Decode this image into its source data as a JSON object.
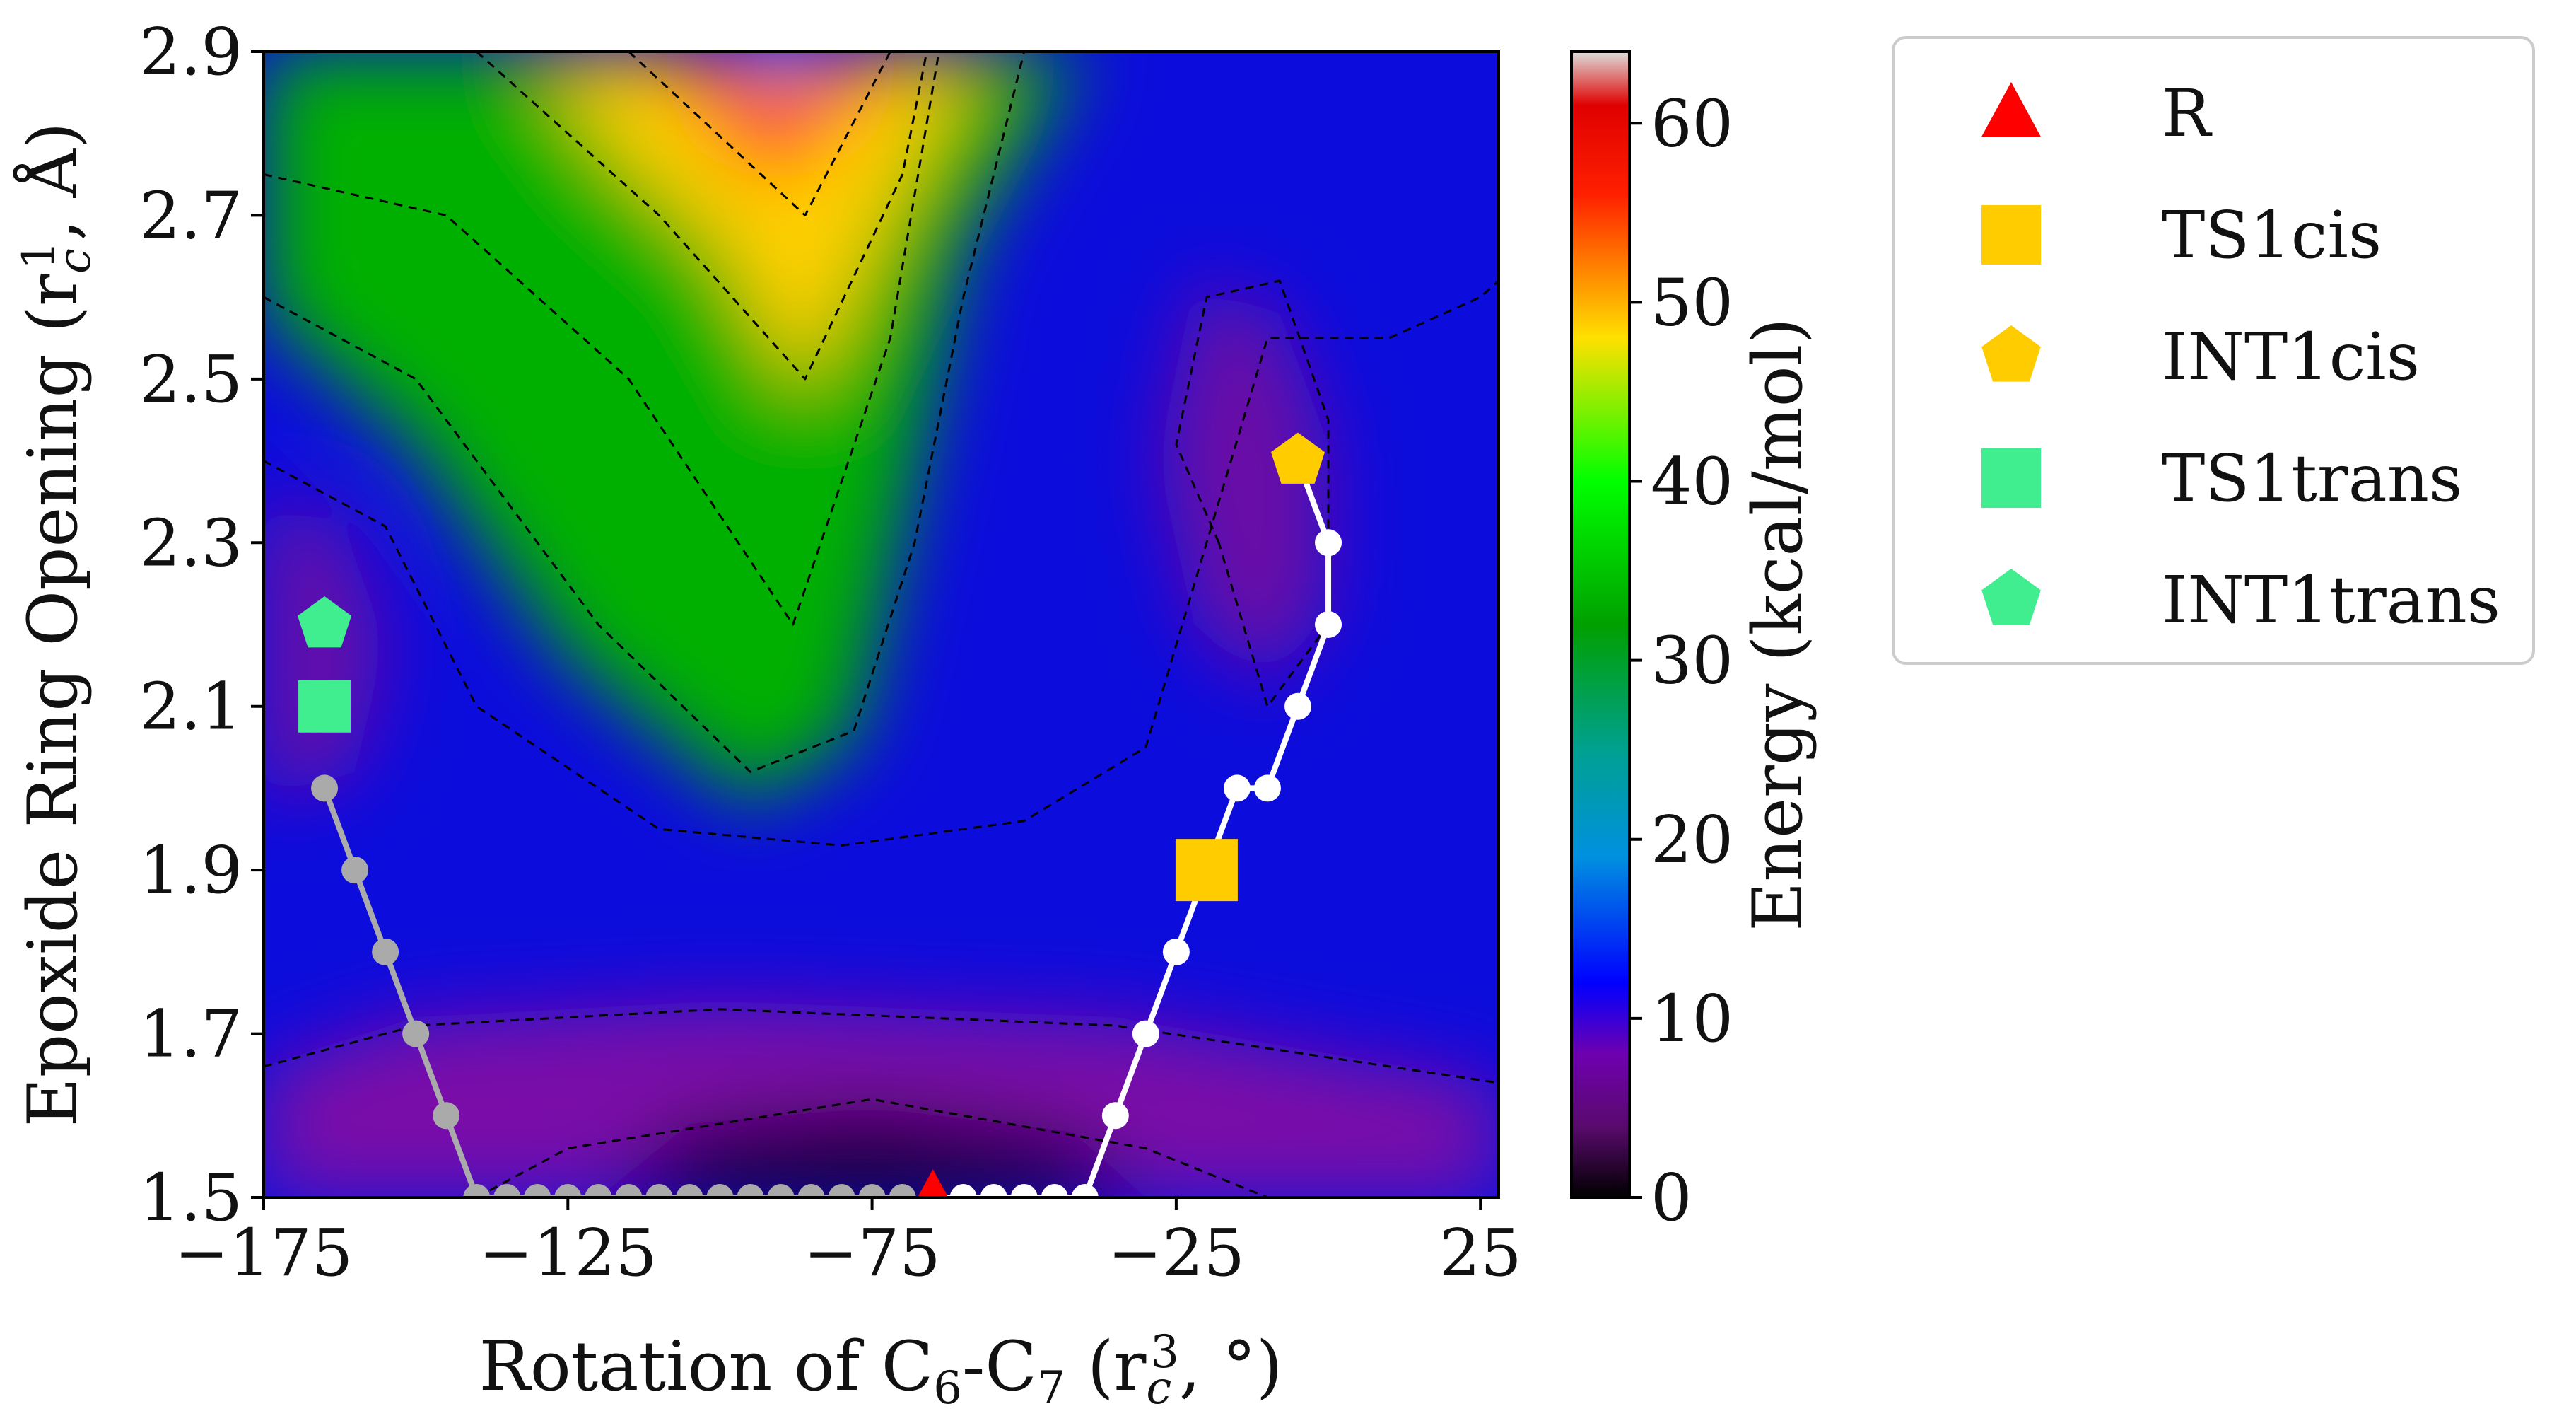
{
  "chart_data": {
    "type": "heatmap",
    "subtype": "contour-energy-surface",
    "x_axis": {
      "label_parts": [
        "Rotation of C",
        "6",
        "-C",
        "7",
        " (r",
        "c",
        "3",
        ", °)"
      ],
      "range": [
        -175,
        28
      ],
      "ticks": [
        -175,
        -125,
        -75,
        -25,
        25
      ],
      "tick_labels": [
        "−175",
        "−125",
        "−75",
        "−25",
        "25"
      ]
    },
    "y_axis": {
      "label_parts": [
        "Epoxide Ring Opening (r",
        "c",
        "1",
        ", Å)"
      ],
      "range": [
        1.5,
        2.9
      ],
      "ticks": [
        1.5,
        1.7,
        1.9,
        2.1,
        2.3,
        2.5,
        2.7,
        2.9
      ],
      "tick_labels": [
        "1.5",
        "1.7",
        "1.9",
        "2.1",
        "2.3",
        "2.5",
        "2.7",
        "2.9"
      ]
    },
    "colorbar": {
      "label": "Energy (kcal/mol)",
      "range": [
        0,
        64
      ],
      "ticks": [
        0,
        10,
        20,
        30,
        40,
        50,
        60
      ],
      "tick_labels": [
        "0",
        "10",
        "20",
        "30",
        "40",
        "50",
        "60"
      ],
      "stops": [
        {
          "value": 0,
          "color": "#000000"
        },
        {
          "value": 4,
          "color": "#5a0a6e"
        },
        {
          "value": 8,
          "color": "#6e00b0"
        },
        {
          "value": 12,
          "color": "#0000ff"
        },
        {
          "value": 19,
          "color": "#0090e0"
        },
        {
          "value": 25,
          "color": "#00a090"
        },
        {
          "value": 32,
          "color": "#00a000"
        },
        {
          "value": 40,
          "color": "#00ff00"
        },
        {
          "value": 48,
          "color": "#ffe000"
        },
        {
          "value": 56,
          "color": "#ff2000"
        },
        {
          "value": 61,
          "color": "#e00000"
        },
        {
          "value": 64,
          "color": "#dddddd"
        }
      ]
    },
    "heatmap_regions": [
      {
        "name": "lower-basin",
        "points": [
          [
            -175,
            1.5
          ],
          [
            28,
            1.5
          ],
          [
            28,
            1.64
          ],
          [
            -35,
            1.72
          ],
          [
            -100,
            1.74
          ],
          [
            -150,
            1.72
          ],
          [
            -175,
            1.66
          ]
        ],
        "color": "#7a10a8"
      },
      {
        "name": "global-minimum",
        "points": [
          [
            -120,
            1.5
          ],
          [
            -30,
            1.5
          ],
          [
            -42,
            1.58
          ],
          [
            -75,
            1.61
          ],
          [
            -105,
            1.59
          ]
        ],
        "color": "#120414"
      },
      {
        "name": "trans-well",
        "points": [
          [
            -175,
            2.36
          ],
          [
            -162,
            2.32
          ],
          [
            -155,
            2.18
          ],
          [
            -160,
            2.02
          ],
          [
            -175,
            1.98
          ]
        ],
        "color": "#6a0aa6"
      },
      {
        "name": "cis-well",
        "points": [
          [
            -22,
            2.62
          ],
          [
            -8,
            2.58
          ],
          [
            0,
            2.42
          ],
          [
            0,
            2.22
          ],
          [
            -10,
            2.12
          ],
          [
            -22,
            2.2
          ],
          [
            -28,
            2.4
          ]
        ],
        "color": "#6a0aa6"
      },
      {
        "name": "ridge-green",
        "points": [
          [
            -175,
            2.9
          ],
          [
            -40,
            2.9
          ],
          [
            -60,
            2.66
          ],
          [
            -70,
            2.32
          ],
          [
            -78,
            2.06
          ],
          [
            -95,
            1.98
          ],
          [
            -125,
            2.16
          ],
          [
            -150,
            2.42
          ],
          [
            -175,
            2.58
          ]
        ],
        "color": "#00b000"
      },
      {
        "name": "ridge-yellow",
        "points": [
          [
            -130,
            2.9
          ],
          [
            -58,
            2.9
          ],
          [
            -72,
            2.7
          ],
          [
            -86,
            2.48
          ],
          [
            -100,
            2.66
          ],
          [
            -118,
            2.78
          ]
        ],
        "color": "#ffd000"
      },
      {
        "name": "ridge-red",
        "points": [
          [
            -110,
            2.9
          ],
          [
            -72,
            2.9
          ],
          [
            -82,
            2.8
          ],
          [
            -92,
            2.74
          ],
          [
            -102,
            2.82
          ]
        ],
        "color": "#ff1010"
      },
      {
        "name": "ridge-peak",
        "points": [
          [
            -96,
            2.9
          ],
          [
            -84,
            2.9
          ],
          [
            -88,
            2.86
          ],
          [
            -92,
            2.86
          ]
        ],
        "color": "#e8e8e8"
      }
    ],
    "contour_lines": [
      [
        [
          -175,
          1.66
        ],
        [
          -150,
          1.71
        ],
        [
          -100,
          1.73
        ],
        [
          -35,
          1.71
        ],
        [
          28,
          1.64
        ]
      ],
      [
        [
          -140,
          1.5
        ],
        [
          -125,
          1.56
        ],
        [
          -75,
          1.62
        ],
        [
          -30,
          1.56
        ],
        [
          -10,
          1.5
        ]
      ],
      [
        [
          -175,
          2.4
        ],
        [
          -155,
          2.32
        ],
        [
          -140,
          2.1
        ],
        [
          -110,
          1.95
        ],
        [
          -80,
          1.93
        ],
        [
          -50,
          1.96
        ],
        [
          -30,
          2.05
        ],
        [
          -20,
          2.3
        ],
        [
          -10,
          2.55
        ],
        [
          10,
          2.55
        ],
        [
          25,
          2.6
        ],
        [
          28,
          2.62
        ]
      ],
      [
        [
          -175,
          2.6
        ],
        [
          -150,
          2.5
        ],
        [
          -120,
          2.2
        ],
        [
          -95,
          2.02
        ],
        [
          -78,
          2.07
        ],
        [
          -68,
          2.3
        ],
        [
          -60,
          2.6
        ],
        [
          -50,
          2.9
        ]
      ],
      [
        [
          -175,
          2.75
        ],
        [
          -145,
          2.7
        ],
        [
          -115,
          2.5
        ],
        [
          -88,
          2.2
        ],
        [
          -72,
          2.55
        ],
        [
          -64,
          2.9
        ]
      ],
      [
        [
          -140,
          2.9
        ],
        [
          -110,
          2.7
        ],
        [
          -86,
          2.5
        ],
        [
          -70,
          2.75
        ],
        [
          -66,
          2.9
        ]
      ],
      [
        [
          -115,
          2.9
        ],
        [
          -86,
          2.7
        ],
        [
          -72,
          2.9
        ]
      ],
      [
        [
          -18,
          2.3
        ],
        [
          -25,
          2.42
        ],
        [
          -20,
          2.6
        ],
        [
          -8,
          2.62
        ],
        [
          0,
          2.45
        ],
        [
          0,
          2.2
        ],
        [
          -10,
          2.1
        ],
        [
          -18,
          2.3
        ]
      ]
    ],
    "series": [
      {
        "name": "trans-path",
        "color": "#aaaaaa",
        "points": [
          [
            -165,
            2.0
          ],
          [
            -160,
            1.9
          ],
          [
            -155,
            1.8
          ],
          [
            -150,
            1.7
          ],
          [
            -145,
            1.6
          ],
          [
            -140,
            1.5
          ],
          [
            -135,
            1.5
          ],
          [
            -130,
            1.5
          ],
          [
            -125,
            1.5
          ],
          [
            -120,
            1.5
          ],
          [
            -115,
            1.5
          ],
          [
            -110,
            1.5
          ],
          [
            -105,
            1.5
          ],
          [
            -100,
            1.5
          ],
          [
            -95,
            1.5
          ],
          [
            -90,
            1.5
          ],
          [
            -85,
            1.5
          ],
          [
            -80,
            1.5
          ],
          [
            -75,
            1.5
          ],
          [
            -70,
            1.5
          ]
        ]
      },
      {
        "name": "cis-path",
        "color": "#ffffff",
        "points": [
          [
            -65,
            1.5
          ],
          [
            -60,
            1.5
          ],
          [
            -55,
            1.5
          ],
          [
            -50,
            1.5
          ],
          [
            -45,
            1.5
          ],
          [
            -40,
            1.5
          ],
          [
            -35,
            1.6
          ],
          [
            -30,
            1.7
          ],
          [
            -25,
            1.8
          ],
          [
            -20,
            1.9
          ],
          [
            -15,
            2.0
          ],
          [
            -10,
            2.0
          ],
          [
            -5,
            2.1
          ],
          [
            0,
            2.2
          ],
          [
            0,
            2.3
          ],
          [
            -5,
            2.4
          ]
        ]
      }
    ],
    "markers": [
      {
        "label": "R",
        "shape": "triangle",
        "color": "#ff0000",
        "x": -65,
        "y": 1.5
      },
      {
        "label": "TS1cis",
        "shape": "square",
        "color": "#ffcc00",
        "x": -20,
        "y": 1.9
      },
      {
        "label": "INT1cis",
        "shape": "pentagon",
        "color": "#ffcc00",
        "x": -5,
        "y": 2.4
      },
      {
        "label": "TS1trans",
        "shape": "square",
        "color": "#40ee90",
        "x": -165,
        "y": 2.1
      },
      {
        "label": "INT1trans",
        "shape": "pentagon",
        "color": "#40ee90",
        "x": -165,
        "y": 2.2
      }
    ],
    "legend": {
      "position": "outside-right-top",
      "entries": [
        {
          "label": "R",
          "shape": "triangle",
          "color": "#ff0000"
        },
        {
          "label": "TS1cis",
          "shape": "square",
          "color": "#ffcc00"
        },
        {
          "label": "INT1cis",
          "shape": "pentagon",
          "color": "#ffcc00"
        },
        {
          "label": "TS1trans",
          "shape": "square",
          "color": "#40ee90"
        },
        {
          "label": "INT1trans",
          "shape": "pentagon",
          "color": "#40ee90"
        }
      ]
    }
  }
}
